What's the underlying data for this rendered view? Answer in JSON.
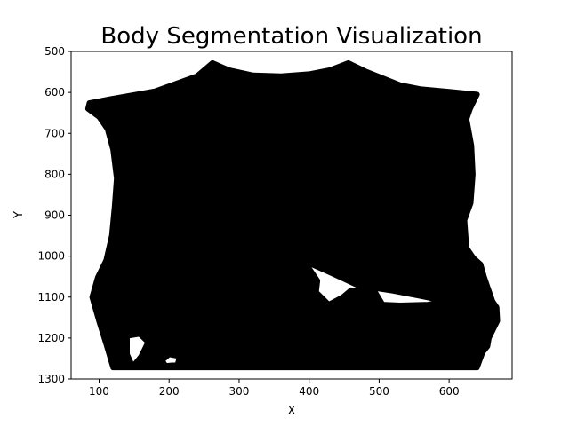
{
  "chart_data": {
    "type": "scatter",
    "title": "Body Segmentation Visualization",
    "xlabel": "X",
    "ylabel": "Y",
    "xlim": [
      60,
      690
    ],
    "ylim": [
      1300,
      500
    ],
    "y_inverted": true,
    "xticks": [
      100,
      200,
      300,
      400,
      500,
      600
    ],
    "yticks": [
      500,
      600,
      700,
      800,
      900,
      1000,
      1100,
      1200,
      1300
    ],
    "grid": false,
    "marker_color": "#000000",
    "series": [
      {
        "region_outline": [
          [
            86,
            626
          ],
          [
            120,
            615
          ],
          [
            180,
            597
          ],
          [
            240,
            560
          ],
          [
            262,
            528
          ],
          [
            285,
            545
          ],
          [
            320,
            558
          ],
          [
            360,
            560
          ],
          [
            400,
            555
          ],
          [
            430,
            545
          ],
          [
            456,
            528
          ],
          [
            480,
            548
          ],
          [
            530,
            582
          ],
          [
            560,
            592
          ],
          [
            600,
            598
          ],
          [
            640,
            605
          ],
          [
            630,
            640
          ],
          [
            625,
            665
          ],
          [
            632,
            730
          ],
          [
            634,
            800
          ],
          [
            631,
            870
          ],
          [
            622,
            912
          ],
          [
            625,
            980
          ],
          [
            635,
            1005
          ],
          [
            645,
            1020
          ],
          [
            650,
            1050
          ],
          [
            655,
            1075
          ],
          [
            662,
            1110
          ],
          [
            668,
            1125
          ],
          [
            669,
            1158
          ],
          [
            657,
            1200
          ],
          [
            655,
            1220
          ],
          [
            648,
            1235
          ],
          [
            640,
            1272
          ],
          [
            120,
            1272
          ],
          [
            110,
            1215
          ],
          [
            100,
            1160
          ],
          [
            90,
            1100
          ],
          [
            98,
            1052
          ],
          [
            110,
            1010
          ],
          [
            118,
            950
          ],
          [
            122,
            880
          ],
          [
            125,
            810
          ],
          [
            120,
            740
          ],
          [
            112,
            690
          ],
          [
            100,
            660
          ],
          [
            84,
            640
          ]
        ],
        "holes": [
          [
            [
              393,
              1012
            ],
            [
              430,
              1040
            ],
            [
              470,
              1072
            ],
            [
              520,
              1085
            ],
            [
              560,
              1098
            ],
            [
              595,
              1110
            ],
            [
              570,
              1118
            ],
            [
              530,
              1120
            ],
            [
              505,
              1118
            ],
            [
              495,
              1090
            ],
            [
              460,
              1083
            ],
            [
              448,
              1100
            ],
            [
              428,
              1118
            ],
            [
              410,
              1088
            ],
            [
              412,
              1060
            ],
            [
              400,
              1030
            ]
          ],
          [
            [
              140,
              1195
            ],
            [
              158,
              1190
            ],
            [
              170,
              1210
            ],
            [
              160,
              1245
            ],
            [
              148,
              1270
            ],
            [
              140,
              1240
            ]
          ],
          [
            [
              200,
              1240
            ],
            [
              215,
              1245
            ],
            [
              212,
              1265
            ],
            [
              195,
              1268
            ],
            [
              190,
              1255
            ]
          ]
        ]
      }
    ]
  }
}
